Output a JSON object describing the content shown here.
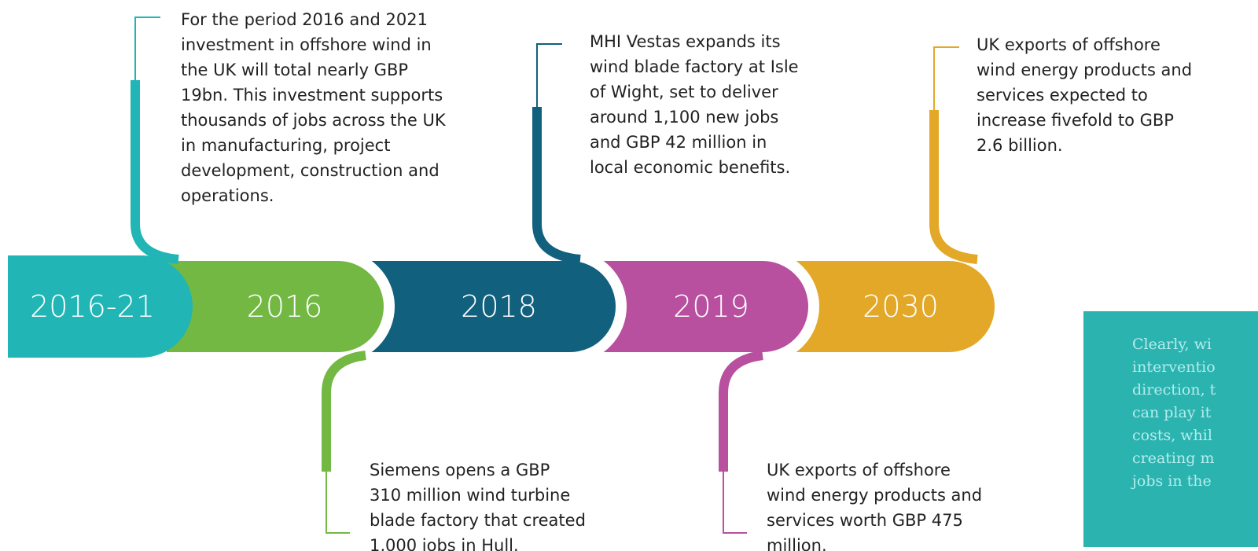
{
  "timeline": {
    "items": [
      {
        "label": "2016-21",
        "color": "#22b5b5",
        "side": "up",
        "text": [
          "For the period 2016 and 2021",
          "investment in offshore wind in",
          "the UK will total nearly GBP",
          "19bn. This investment supports",
          "thousands of jobs across the UK",
          "in manufacturing, project",
          "development, construction and",
          "operations."
        ]
      },
      {
        "label": "2016",
        "color": "#72b843",
        "side": "down",
        "text": [
          "Siemens opens a GBP",
          "310 million wind turbine",
          "blade factory that created",
          "1,000 jobs in Hull."
        ]
      },
      {
        "label": "2018",
        "color": "#11607e",
        "side": "up",
        "text": [
          "MHI Vestas expands its",
          "wind blade factory at Isle",
          "of Wight, set to deliver",
          "around 1,100 new jobs",
          "and GBP 42 million in",
          "local economic benefits."
        ]
      },
      {
        "label": "2019",
        "color": "#b84f9f",
        "side": "down",
        "text": [
          "UK exports of offshore",
          "wind energy products and",
          "services worth GBP 475",
          "million."
        ]
      },
      {
        "label": "2030",
        "color": "#e3a827",
        "side": "up",
        "text": [
          "UK exports of offshore",
          "wind energy products and",
          "services expected to",
          "increase fivefold to GBP",
          "2.6 billion."
        ]
      }
    ]
  },
  "sidebox": {
    "lines": [
      "Clearly, wi",
      "interventio",
      "direction, t",
      "can play it",
      "costs, whil",
      "creating m",
      "jobs in the"
    ]
  }
}
